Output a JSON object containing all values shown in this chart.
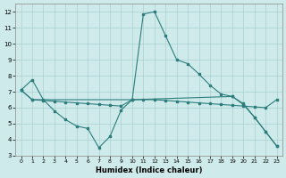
{
  "xlabel": "Humidex (Indice chaleur)",
  "background_color": "#ceeaea",
  "grid_color": "#aacfcf",
  "line_color": "#2d7d7d",
  "xlim": [
    -0.5,
    23.5
  ],
  "ylim": [
    3,
    12.5
  ],
  "yticks": [
    3,
    4,
    5,
    6,
    7,
    8,
    9,
    10,
    11,
    12
  ],
  "xticks": [
    0,
    1,
    2,
    3,
    4,
    5,
    6,
    7,
    8,
    9,
    10,
    11,
    12,
    13,
    14,
    15,
    16,
    17,
    18,
    19,
    20,
    21,
    22,
    23
  ],
  "line1_x": [
    0,
    1,
    2,
    3,
    4,
    5,
    6,
    7,
    8,
    9,
    10,
    11,
    12,
    13,
    14,
    15,
    16,
    17,
    18,
    19,
    20,
    21,
    22,
    23
  ],
  "line1_y": [
    7.1,
    7.75,
    6.5,
    5.8,
    5.25,
    4.85,
    4.7,
    3.5,
    4.2,
    5.85,
    6.5,
    11.85,
    12.0,
    10.5,
    9.0,
    8.75,
    8.1,
    7.4,
    6.85,
    6.7,
    6.2,
    5.4,
    4.5,
    3.6
  ],
  "line2_x": [
    0,
    1,
    10,
    19,
    20,
    21,
    22,
    23
  ],
  "line2_y": [
    7.1,
    6.5,
    6.5,
    6.7,
    6.25,
    5.4,
    4.5,
    3.6
  ],
  "line3_x": [
    0,
    1,
    2,
    3,
    4,
    5,
    6,
    7,
    8,
    9,
    10,
    11,
    12,
    13,
    14,
    15,
    16,
    17,
    18,
    19,
    20,
    21,
    22,
    23
  ],
  "line3_y": [
    7.1,
    6.5,
    6.45,
    6.4,
    6.35,
    6.3,
    6.25,
    6.2,
    6.15,
    6.1,
    6.5,
    6.5,
    6.5,
    6.45,
    6.4,
    6.35,
    6.3,
    6.25,
    6.2,
    6.15,
    6.1,
    6.05,
    6.0,
    6.5
  ]
}
